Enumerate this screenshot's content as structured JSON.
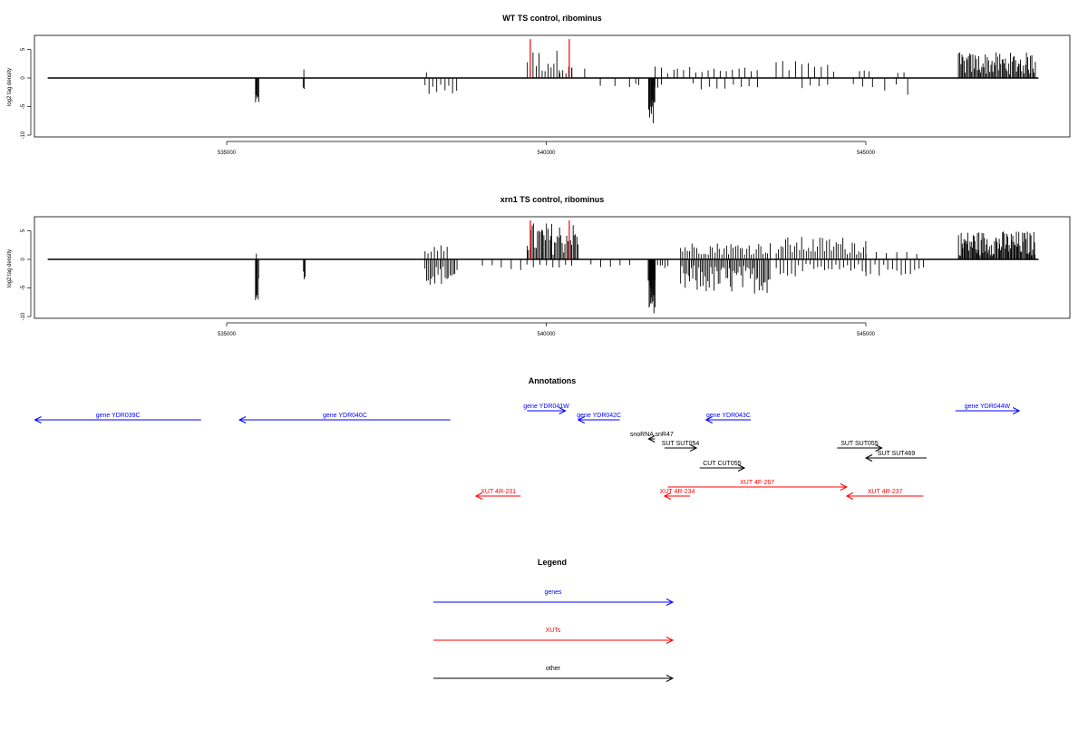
{
  "chart_data": [
    {
      "type": "bar",
      "title": "WT TS control, ribominus",
      "ylabel": "log2 tag density",
      "xlim": [
        532000,
        548500
      ],
      "ylim": [
        -10,
        7
      ],
      "x_ticks": [
        535000,
        540000,
        545000
      ],
      "x_tick_labels": [
        "535000",
        "540000",
        "545000"
      ],
      "y_ticks": [
        -10,
        -5,
        0,
        5
      ],
      "y_tick_labels": [
        "-10",
        "-5",
        "0",
        "5"
      ],
      "baseline": [
        532200,
        547700
      ],
      "highlight_lines": [
        {
          "x": 539750,
          "top": 6.8,
          "color": "#ff0000"
        },
        {
          "x": 540360,
          "top": 6.8,
          "color": "#ff0000"
        }
      ],
      "clusters": [
        {
          "from": 535450,
          "to": 535500,
          "n": 6,
          "min": -4.8,
          "max": -3,
          "dir": -1
        },
        {
          "from": 536200,
          "to": 536215,
          "n": 1,
          "min": 1.5,
          "max": 1.5,
          "dir": 1
        },
        {
          "from": 536200,
          "to": 536215,
          "n": 2,
          "min": -2,
          "max": -1.5,
          "dir": -1
        },
        {
          "from": 538100,
          "to": 538600,
          "n": 9,
          "min": -3,
          "max": -1,
          "dir": -1
        },
        {
          "from": 538100,
          "to": 538150,
          "n": 1,
          "min": 1,
          "max": 1,
          "dir": 1
        },
        {
          "from": 539700,
          "to": 540400,
          "n": 16,
          "min": 0.8,
          "max": 5,
          "dir": 1
        },
        {
          "from": 540200,
          "to": 540600,
          "n": 3,
          "min": 0.8,
          "max": 2,
          "dir": 1
        },
        {
          "from": 540850,
          "to": 541300,
          "n": 3,
          "min": -1.8,
          "max": -1,
          "dir": -1
        },
        {
          "from": 541400,
          "to": 541450,
          "n": 2,
          "min": -1.5,
          "max": -1,
          "dir": -1
        },
        {
          "from": 541600,
          "to": 541700,
          "n": 14,
          "min": -9.5,
          "max": -3,
          "dir": -1
        },
        {
          "from": 541700,
          "to": 541800,
          "n": 3,
          "min": -2,
          "max": -1,
          "dir": -1
        },
        {
          "from": 541700,
          "to": 542000,
          "n": 4,
          "min": 0.8,
          "max": 2,
          "dir": 1
        },
        {
          "from": 542050,
          "to": 543300,
          "n": 14,
          "min": 0.8,
          "max": 2,
          "dir": 1
        },
        {
          "from": 542300,
          "to": 543300,
          "n": 9,
          "min": -2,
          "max": -0.8,
          "dir": -1
        },
        {
          "from": 543600,
          "to": 544500,
          "n": 10,
          "min": 0.8,
          "max": 3,
          "dir": 1
        },
        {
          "from": 544000,
          "to": 544400,
          "n": 4,
          "min": -1.8,
          "max": -0.8,
          "dir": -1
        },
        {
          "from": 544900,
          "to": 545050,
          "n": 3,
          "min": 0.8,
          "max": 2,
          "dir": 1
        },
        {
          "from": 544800,
          "to": 545100,
          "n": 3,
          "min": -1.8,
          "max": -1,
          "dir": -1
        },
        {
          "from": 545300,
          "to": 545650,
          "n": 3,
          "min": -3,
          "max": -1,
          "dir": -1
        },
        {
          "from": 545500,
          "to": 545600,
          "n": 2,
          "min": 0.8,
          "max": 1,
          "dir": 1
        },
        {
          "from": 546450,
          "to": 547650,
          "n": 70,
          "min": 0.6,
          "max": 4.5,
          "dir": 1
        }
      ]
    },
    {
      "type": "bar",
      "title": "xrn1 TS control, ribominus",
      "ylabel": "log2 tag density",
      "xlim": [
        532000,
        548500
      ],
      "ylim": [
        -10,
        7
      ],
      "x_ticks": [
        535000,
        540000,
        545000
      ],
      "x_tick_labels": [
        "535000",
        "540000",
        "545000"
      ],
      "y_ticks": [
        -10,
        -5,
        0,
        5
      ],
      "y_tick_labels": [
        "-10",
        "-5",
        "0",
        "5"
      ],
      "baseline": [
        532200,
        547700
      ],
      "highlight_lines": [
        {
          "x": 539750,
          "top": 6.8,
          "color": "#ff0000"
        },
        {
          "x": 540360,
          "top": 6.8,
          "color": "#ff0000"
        }
      ],
      "clusters": [
        {
          "from": 535450,
          "to": 535500,
          "n": 6,
          "min": -7.5,
          "max": -3,
          "dir": -1
        },
        {
          "from": 535450,
          "to": 535480,
          "n": 1,
          "min": 1,
          "max": 1,
          "dir": 1
        },
        {
          "from": 536200,
          "to": 536230,
          "n": 3,
          "min": -3.5,
          "max": -1.5,
          "dir": -1
        },
        {
          "from": 538100,
          "to": 538600,
          "n": 20,
          "min": -4.5,
          "max": -1,
          "dir": -1
        },
        {
          "from": 538100,
          "to": 538450,
          "n": 8,
          "min": 0.8,
          "max": 2.5,
          "dir": 1
        },
        {
          "from": 539000,
          "to": 539600,
          "n": 5,
          "min": -2,
          "max": -1,
          "dir": -1
        },
        {
          "from": 539700,
          "to": 540500,
          "n": 40,
          "min": 0.8,
          "max": 6.5,
          "dir": 1
        },
        {
          "from": 539700,
          "to": 540400,
          "n": 8,
          "min": -1.5,
          "max": -0.8,
          "dir": -1
        },
        {
          "from": 540700,
          "to": 541300,
          "n": 5,
          "min": -1.5,
          "max": -0.8,
          "dir": -1
        },
        {
          "from": 541600,
          "to": 541700,
          "n": 18,
          "min": -9.5,
          "max": -3,
          "dir": -1
        },
        {
          "from": 541700,
          "to": 541900,
          "n": 6,
          "min": -2.5,
          "max": -1,
          "dir": -1
        },
        {
          "from": 542100,
          "to": 543500,
          "n": 60,
          "min": -6,
          "max": -1,
          "dir": -1
        },
        {
          "from": 542100,
          "to": 543500,
          "n": 40,
          "min": 0.8,
          "max": 3,
          "dir": 1
        },
        {
          "from": 543600,
          "to": 545000,
          "n": 40,
          "min": 0.8,
          "max": 4,
          "dir": 1
        },
        {
          "from": 543600,
          "to": 545000,
          "n": 25,
          "min": -3,
          "max": -0.8,
          "dir": -1
        },
        {
          "from": 545000,
          "to": 545900,
          "n": 14,
          "min": -3,
          "max": -0.8,
          "dir": -1
        },
        {
          "from": 545000,
          "to": 545800,
          "n": 6,
          "min": 0.8,
          "max": 1.5,
          "dir": 1
        },
        {
          "from": 546450,
          "to": 547650,
          "n": 90,
          "min": 0.6,
          "max": 5,
          "dir": 1
        }
      ]
    }
  ],
  "annotations": {
    "title": "Annotations",
    "features": [
      {
        "label": "gene YDR039C",
        "start": 532000,
        "end": 534600,
        "strand": "-",
        "color": "#0000ff",
        "row": 1
      },
      {
        "label": "gene YDR040C",
        "start": 535200,
        "end": 538500,
        "strand": "-",
        "color": "#0000ff",
        "row": 1
      },
      {
        "label": "gene YDR041W",
        "start": 539700,
        "end": 540300,
        "strand": "+",
        "color": "#0000ff",
        "row": 0
      },
      {
        "label": "gene YDR042C",
        "start": 540500,
        "end": 541150,
        "strand": "-",
        "color": "#0000ff",
        "row": 1
      },
      {
        "label": "gene YDR043C",
        "start": 542500,
        "end": 543200,
        "strand": "-",
        "color": "#0000ff",
        "row": 1
      },
      {
        "label": "gene YDR044W",
        "start": 546400,
        "end": 547400,
        "strand": "+",
        "color": "#0000ff",
        "row": 0
      },
      {
        "label": "snoRNA snR47",
        "start": 541600,
        "end": 541700,
        "strand": "-",
        "color": "#000000",
        "row": 2
      },
      {
        "label": "SUT SUT054",
        "start": 541850,
        "end": 542350,
        "strand": "+",
        "color": "#000000",
        "row": 3
      },
      {
        "label": "SUT SUT055",
        "start": 544550,
        "end": 545250,
        "strand": "+",
        "color": "#000000",
        "row": 3
      },
      {
        "label": "SUT SUT469",
        "start": 545000,
        "end": 545950,
        "strand": "-",
        "color": "#000000",
        "row": 4
      },
      {
        "label": "CUT CUT055",
        "start": 542400,
        "end": 543100,
        "strand": "+",
        "color": "#000000",
        "row": 5
      },
      {
        "label": "XUT 4F-267",
        "start": 541900,
        "end": 544700,
        "strand": "+",
        "color": "#ff0000",
        "row": 6
      },
      {
        "label": "XUT 4R-231",
        "start": 538900,
        "end": 539600,
        "strand": "-",
        "color": "#ff0000",
        "row": 7
      },
      {
        "label": "XUT 4R-234",
        "start": 541850,
        "end": 542250,
        "strand": "-",
        "color": "#ff0000",
        "row": 7
      },
      {
        "label": "XUT 4R-237",
        "start": 544700,
        "end": 545900,
        "strand": "-",
        "color": "#ff0000",
        "row": 7
      }
    ]
  },
  "legend": {
    "title": "Legend",
    "items": [
      {
        "label": "genes",
        "color": "#0000ff"
      },
      {
        "label": "XUTs",
        "color": "#ff0000"
      },
      {
        "label": "other",
        "color": "#000000"
      }
    ]
  }
}
